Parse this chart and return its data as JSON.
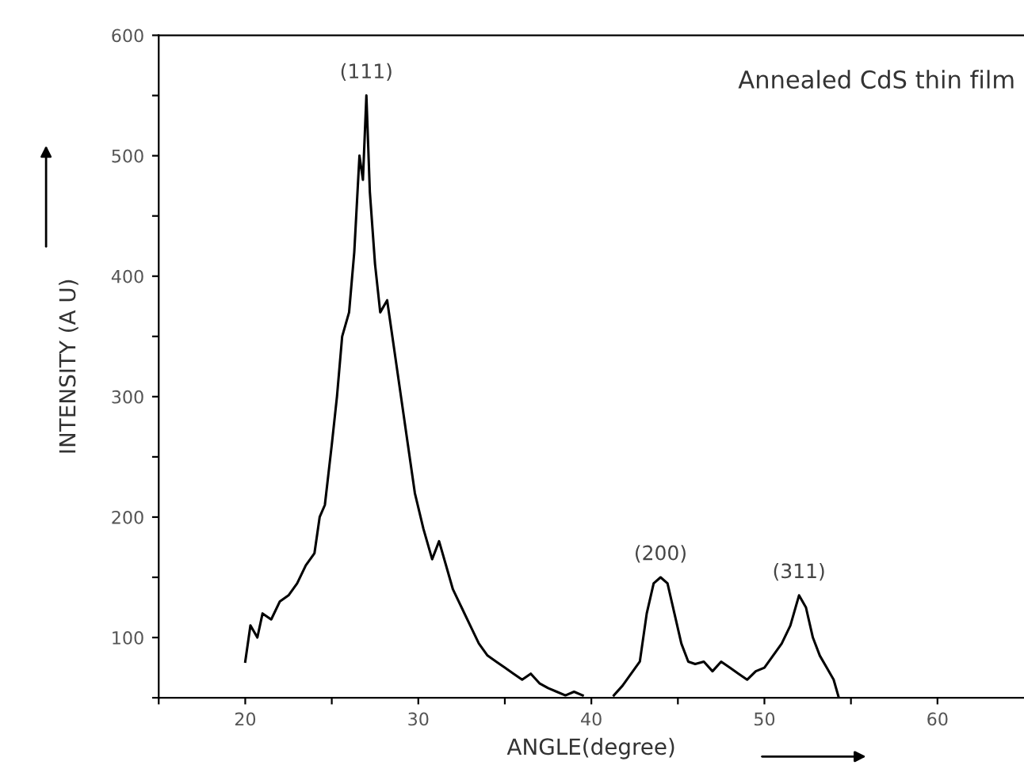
{
  "chart_data": {
    "type": "line",
    "xlabel": "ANGLE(degree)",
    "ylabel": "INTENSITY (A U)",
    "xlim": [
      15,
      65
    ],
    "ylim": [
      50,
      600
    ],
    "xticks": [
      {
        "value": 15,
        "label": null
      },
      20,
      {
        "value": 25,
        "label": null
      },
      30,
      {
        "value": 35,
        "label": null
      },
      40,
      {
        "value": 45,
        "label": null
      },
      50,
      {
        "value": 55,
        "label": null
      },
      60
    ],
    "yticks": [
      {
        "value": 50,
        "label": null
      },
      100,
      {
        "value": 150,
        "label": null
      },
      200,
      {
        "value": 250,
        "label": null
      },
      300,
      {
        "value": 350,
        "label": null
      },
      400,
      {
        "value": 450,
        "label": null
      },
      500,
      {
        "value": 550,
        "label": null
      },
      600
    ],
    "grid": false,
    "marker": "none",
    "line_style": "solid",
    "annotations": [
      {
        "text": "(111)",
        "x": 27,
        "y": 550
      },
      {
        "text": "(200)",
        "x": 44,
        "y": 150
      },
      {
        "text": "(311)",
        "x": 52,
        "y": 135
      },
      "Annealed CdS thin film"
    ],
    "series": [
      {
        "color": "#000000",
        "x": [
          20,
          20.3,
          20.7,
          21,
          21.5,
          22,
          22.5,
          23,
          23.5,
          24,
          24.3,
          24.6,
          25,
          25.3,
          25.6,
          26,
          26.3,
          26.6,
          26.8,
          27,
          27.2,
          27.5,
          27.8,
          28.2,
          28.6,
          29,
          29.4,
          29.8,
          30.3,
          30.8,
          31.2,
          31.6,
          32,
          32.5,
          33,
          33.5,
          34,
          34.5,
          35,
          35.5,
          36,
          36.5,
          37,
          37.5,
          38,
          38.5,
          39,
          39.5,
          40,
          41,
          41.3,
          41.8,
          42.3,
          42.8,
          43.2,
          43.6,
          44,
          44.4,
          44.8,
          45.2,
          45.6,
          46,
          46.5,
          47,
          47.5,
          48,
          48.5,
          49,
          49.5,
          50,
          50.5,
          51,
          51.5,
          52,
          52.4,
          52.8,
          53.2,
          53.6,
          54,
          54.3
        ],
        "values": [
          80,
          110,
          100,
          120,
          115,
          130,
          135,
          145,
          160,
          170,
          200,
          210,
          260,
          300,
          350,
          370,
          420,
          500,
          480,
          550,
          470,
          410,
          370,
          380,
          340,
          300,
          260,
          220,
          190,
          165,
          180,
          160,
          140,
          125,
          110,
          95,
          85,
          80,
          75,
          70,
          65,
          70,
          62,
          58,
          55,
          52,
          55,
          52,
          null,
          null,
          52,
          60,
          70,
          80,
          120,
          145,
          150,
          145,
          120,
          95,
          80,
          78,
          80,
          72,
          80,
          75,
          70,
          65,
          72,
          75,
          85,
          95,
          110,
          135,
          125,
          100,
          85,
          75,
          65,
          50
        ]
      }
    ]
  }
}
